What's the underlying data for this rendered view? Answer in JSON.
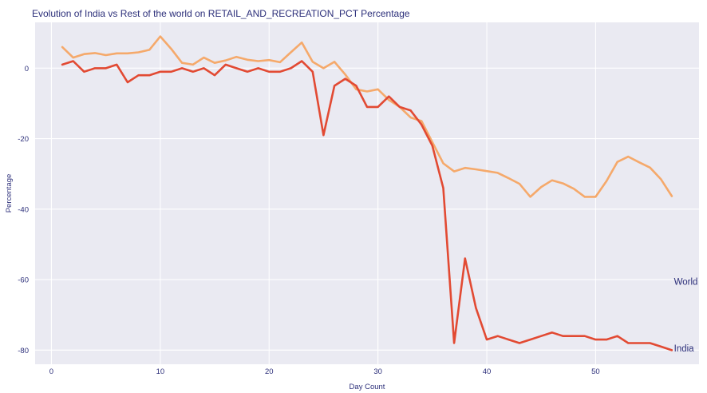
{
  "chart_data": {
    "type": "line",
    "title": "Evolution of India vs Rest of the world on RETAIL_AND_RECREATION_PCT Percentage",
    "xlabel": "Day Count",
    "ylabel": "Percentage",
    "xlim": [
      -1.5,
      59.5
    ],
    "ylim": [
      -84,
      13
    ],
    "xticks": [
      0,
      10,
      20,
      30,
      40,
      50
    ],
    "yticks": [
      0,
      -20,
      -40,
      -60,
      -80
    ],
    "grid": true,
    "background": "#eaeaf2",
    "series": [
      {
        "name": "India",
        "color": "#e24a33",
        "x": [
          1,
          2,
          3,
          4,
          5,
          6,
          7,
          8,
          9,
          10,
          11,
          12,
          13,
          14,
          15,
          16,
          17,
          18,
          19,
          20,
          21,
          22,
          23,
          24,
          25,
          26,
          27,
          28,
          29,
          30,
          31,
          32,
          33,
          34,
          35,
          36,
          37,
          38,
          39,
          40,
          41,
          42,
          43,
          44,
          45,
          46,
          47,
          48,
          49,
          50,
          51,
          52,
          53,
          54,
          55,
          56,
          57
        ],
        "y": [
          1,
          2,
          -1,
          0,
          0,
          1,
          -4,
          -2,
          -2,
          -1,
          -1,
          0,
          -1,
          0,
          -2,
          1,
          0,
          -1,
          0,
          -1,
          -1,
          0,
          2,
          -1,
          -19,
          -5,
          -3,
          -5,
          -11,
          -11,
          -8,
          -11,
          -12,
          -16,
          -22,
          -34,
          -78,
          -54,
          -68,
          -77,
          -76,
          -77,
          -78,
          -77,
          -76,
          -75,
          -76,
          -76,
          -76,
          -77,
          -77,
          -76,
          -78,
          -78,
          -78,
          -79,
          -80
        ]
      },
      {
        "name": "World",
        "color": "#f5a96b",
        "x": [
          1,
          2,
          3,
          4,
          5,
          6,
          7,
          8,
          9,
          10,
          11,
          12,
          13,
          14,
          15,
          16,
          17,
          18,
          19,
          20,
          21,
          22,
          23,
          24,
          25,
          26,
          27,
          28,
          29,
          30,
          31,
          32,
          33,
          34,
          35,
          36,
          37,
          38,
          39,
          40,
          41,
          42,
          43,
          44,
          45,
          46,
          47,
          48,
          49,
          50,
          51,
          52,
          53,
          54,
          55,
          56,
          57
        ],
        "y": [
          6,
          3,
          4,
          4.3,
          3.7,
          4.2,
          4.2,
          4.5,
          5.2,
          9,
          5.5,
          1.5,
          1,
          3,
          1.5,
          2.2,
          3.2,
          2.4,
          2,
          2.3,
          1.7,
          4.5,
          7.3,
          1.8,
          0,
          1.8,
          -1.8,
          -6,
          -6.6,
          -6,
          -9,
          -11,
          -14,
          -15,
          -21,
          -27,
          -29.3,
          -28.3,
          -28.7,
          -29.2,
          -29.7,
          -31.2,
          -32.8,
          -36.5,
          -33.7,
          -31.8,
          -32.7,
          -34.2,
          -36.5,
          -36.5,
          -32,
          -26.6,
          -25.1,
          -26.7,
          -28.2,
          -31.5,
          -36.3
        ]
      }
    ],
    "annotations": [
      {
        "text": "World",
        "x": 57.2,
        "y": -60.5
      },
      {
        "text": "India",
        "x": 57.2,
        "y": -79.5
      }
    ]
  }
}
